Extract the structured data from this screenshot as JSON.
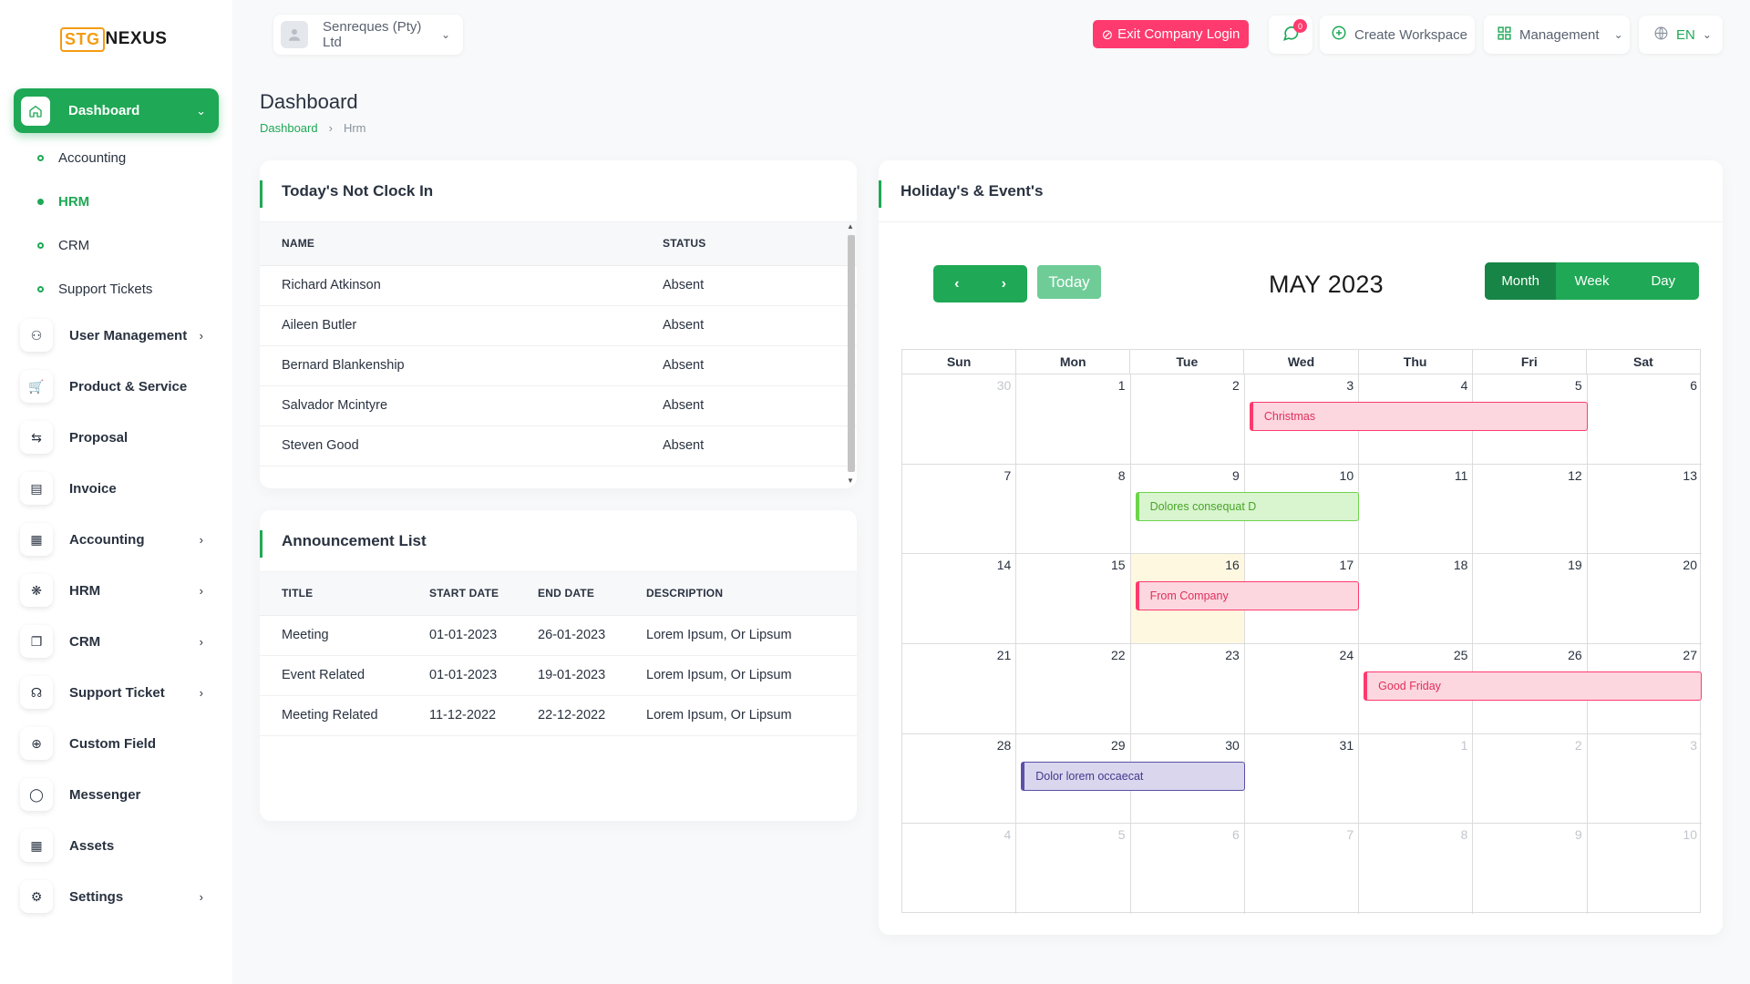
{
  "sidebar": {
    "logo": {
      "box": "STG",
      "text": "NEXUS"
    },
    "active": {
      "label": "Dashboard",
      "icon": "home-icon"
    },
    "subitems": [
      {
        "label": "Accounting",
        "active": false
      },
      {
        "label": "HRM",
        "active": true
      },
      {
        "label": "CRM",
        "active": false
      },
      {
        "label": "Support Tickets",
        "active": false
      }
    ],
    "items": [
      {
        "label": "User Management",
        "icon": "users-icon",
        "chevron": true
      },
      {
        "label": "Product & Service",
        "icon": "cart-icon",
        "chevron": false
      },
      {
        "label": "Proposal",
        "icon": "proposal-icon",
        "chevron": false
      },
      {
        "label": "Invoice",
        "icon": "invoice-icon",
        "chevron": false
      },
      {
        "label": "Accounting",
        "icon": "grid-icon",
        "chevron": true
      },
      {
        "label": "HRM",
        "icon": "hrm-icon",
        "chevron": true
      },
      {
        "label": "CRM",
        "icon": "layers-icon",
        "chevron": true
      },
      {
        "label": "Support Ticket",
        "icon": "headset-icon",
        "chevron": true
      },
      {
        "label": "Custom Field",
        "icon": "plus-circle-icon",
        "chevron": false
      },
      {
        "label": "Messenger",
        "icon": "chat-icon",
        "chevron": false
      },
      {
        "label": "Assets",
        "icon": "calculator-icon",
        "chevron": false
      },
      {
        "label": "Settings",
        "icon": "gear-icon",
        "chevron": true
      }
    ]
  },
  "header": {
    "company": "Senreques (Pty) Ltd",
    "exit_label": "Exit Company Login",
    "msg_count": "0",
    "workspace_label": "Create Workspace",
    "management_label": "Management",
    "lang": "EN"
  },
  "page": {
    "title": "Dashboard",
    "breadcrumb": [
      "Dashboard",
      "Hrm"
    ]
  },
  "not_clock_in": {
    "title": "Today's Not Clock In",
    "columns": [
      "NAME",
      "STATUS"
    ],
    "rows": [
      [
        "Richard Atkinson",
        "Absent"
      ],
      [
        "Aileen Butler",
        "Absent"
      ],
      [
        "Bernard Blankenship",
        "Absent"
      ],
      [
        "Salvador Mcintyre",
        "Absent"
      ],
      [
        "Steven Good",
        "Absent"
      ]
    ]
  },
  "announcements": {
    "title": "Announcement List",
    "columns": [
      "TITLE",
      "START DATE",
      "END DATE",
      "DESCRIPTION"
    ],
    "rows": [
      [
        "Meeting",
        "01-01-2023",
        "26-01-2023",
        "Lorem Ipsum, Or Lipsum"
      ],
      [
        "Event Related",
        "01-01-2023",
        "19-01-2023",
        "Lorem Ipsum, Or Lipsum"
      ],
      [
        "Meeting Related",
        "11-12-2022",
        "22-12-2022",
        "Lorem Ipsum, Or Lipsum"
      ]
    ]
  },
  "calendar": {
    "card_title": "Holiday's & Event's",
    "month_label": "MAY 2023",
    "today_label": "Today",
    "views": [
      "Month",
      "Week",
      "Day"
    ],
    "active_view": "Month",
    "weekdays": [
      "Sun",
      "Mon",
      "Tue",
      "Wed",
      "Thu",
      "Fri",
      "Sat"
    ],
    "weeks": [
      [
        30,
        1,
        2,
        3,
        4,
        5,
        6
      ],
      [
        7,
        8,
        9,
        10,
        11,
        12,
        13
      ],
      [
        14,
        15,
        16,
        17,
        18,
        19,
        20
      ],
      [
        21,
        22,
        23,
        24,
        25,
        26,
        27
      ],
      [
        28,
        29,
        30,
        31,
        1,
        2,
        3
      ],
      [
        4,
        5,
        6,
        7,
        8,
        9,
        10
      ]
    ],
    "today": "16",
    "events": [
      {
        "title": "Christmas",
        "week": 0,
        "start_day": 3,
        "end_day": 5,
        "color": "red"
      },
      {
        "title": "Dolores consequat D",
        "week": 1,
        "start_day": 2,
        "end_day": 3,
        "color": "green"
      },
      {
        "title": "From Company",
        "week": 2,
        "start_day": 2,
        "end_day": 3,
        "color": "red"
      },
      {
        "title": "Good Friday",
        "week": 3,
        "start_day": 4,
        "end_day": 6,
        "color": "red"
      },
      {
        "title": "Dolor lorem occaecat",
        "week": 4,
        "start_day": 1,
        "end_day": 2,
        "color": "purple"
      }
    ]
  },
  "colors": {
    "primary": "#1fa855",
    "danger": "#ff3a6e",
    "today_bg": "#fff8e1"
  }
}
